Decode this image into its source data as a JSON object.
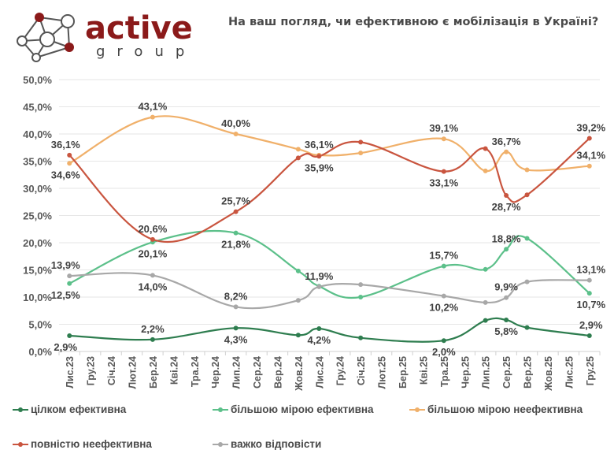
{
  "logo": {
    "brand": "active",
    "sub": "group",
    "colors": {
      "red": "#8b1a1a",
      "grey": "#555555"
    }
  },
  "title": "На ваш погляд, чи ефективною є мобілізація в Україні?",
  "chart_data": {
    "type": "line",
    "title": "На ваш погляд, чи ефективною є мобілізація в Україні?",
    "xlabel": "",
    "ylabel": "",
    "ylim": [
      0,
      50
    ],
    "y_ticks": [
      "0,0%",
      "5,0%",
      "10,0%",
      "15,0%",
      "20,0%",
      "25,0%",
      "30,0%",
      "35,0%",
      "40,0%",
      "45,0%",
      "50,0%"
    ],
    "grid": true,
    "legend_position": "bottom",
    "categories": [
      "Лис.23",
      "Гру.23",
      "Січ.24",
      "Лют.24",
      "Бер.24",
      "Кві.24",
      "Тра.24",
      "Чер.24",
      "Лип.24",
      "Сер.24",
      "Вер.24",
      "Жов.24",
      "Лис.24",
      "Гру.24",
      "Січ.25",
      "Лют.25",
      "Бер.25",
      "Кві.25",
      "Тра.25",
      "Чер.25",
      "Лип.25",
      "Сер.25",
      "Вер.25",
      "Жов.25",
      "Лис.25",
      "Гру.25"
    ],
    "point_indices": [
      0,
      4,
      8,
      11,
      12,
      14,
      18,
      20,
      21,
      22,
      25
    ],
    "series": [
      {
        "name": "цілком ефективна",
        "color": "#2e7d4f",
        "values": [
          2.9,
          2.2,
          4.3,
          3.0,
          4.2,
          2.5,
          2.0,
          5.7,
          5.8,
          4.4,
          2.9
        ],
        "labels": [
          "2,9%",
          "2,2%",
          "4,3%",
          null,
          "4,2%",
          null,
          "2,0%",
          null,
          "5,8%",
          null,
          "2,9%"
        ]
      },
      {
        "name": "більшою мірою ефективна",
        "color": "#5cc08a",
        "values": [
          12.5,
          20.1,
          21.8,
          14.8,
          12.0,
          10.0,
          15.7,
          15.1,
          18.8,
          20.8,
          10.7
        ],
        "labels": [
          "12,5%",
          "20,1%",
          "21,8%",
          null,
          null,
          null,
          "15,7%",
          null,
          "18,8%",
          null,
          "10,7%"
        ]
      },
      {
        "name": "більшою мірою неефективна",
        "color": "#f0b06a",
        "values": [
          34.6,
          43.1,
          40.0,
          37.2,
          36.1,
          36.5,
          39.1,
          33.2,
          36.7,
          33.4,
          34.1
        ],
        "labels": [
          "34,6%",
          "43,1%",
          "40,0%",
          null,
          "36,1%",
          null,
          "39,1%",
          null,
          "36,7%",
          null,
          "34,1%"
        ]
      },
      {
        "name": "повністю неефективна",
        "color": "#c9553f",
        "values": [
          36.1,
          20.6,
          25.7,
          35.6,
          35.9,
          38.5,
          33.1,
          37.3,
          28.7,
          28.8,
          39.2
        ],
        "labels": [
          "36,1%",
          "20,6%",
          "25,7%",
          null,
          "35,9%",
          null,
          "33,1%",
          null,
          "28,7%",
          null,
          "39,2%"
        ]
      },
      {
        "name": "важко відповісти",
        "color": "#a8a8a8",
        "values": [
          13.9,
          14.0,
          8.2,
          9.4,
          11.9,
          12.3,
          10.2,
          9.0,
          9.9,
          12.8,
          13.1
        ],
        "labels": [
          "13,9%",
          "14,0%",
          "8,2%",
          null,
          "11,9%",
          null,
          "10,2%",
          null,
          "9,9%",
          null,
          "13,1%"
        ]
      }
    ]
  }
}
